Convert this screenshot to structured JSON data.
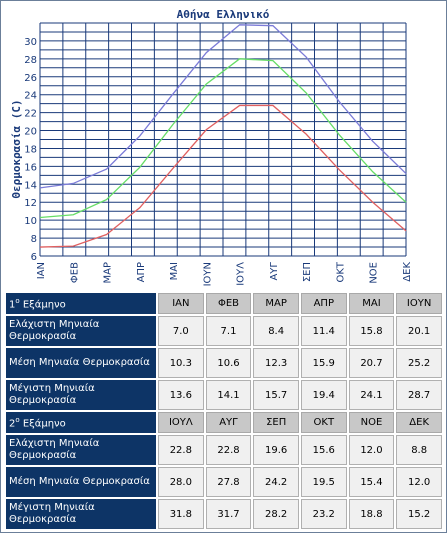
{
  "chart_data": {
    "type": "line",
    "title": "Αθήνα Ελληνικό",
    "ylabel": "Θερμοκρασία (C)",
    "xlabel": "",
    "ylim": [
      6,
      32
    ],
    "yticks": [
      6,
      8,
      10,
      12,
      14,
      16,
      18,
      20,
      22,
      24,
      26,
      28,
      30
    ],
    "categories": [
      "ΙΑΝ",
      "ΦΕΒ",
      "ΜΑΡ",
      "ΑΠΡ",
      "ΜΑΙ",
      "ΙΟΥΝ",
      "ΙΟΥΛ",
      "ΑΥΓ",
      "ΣΕΠ",
      "ΟΚΤ",
      "ΝΟΕ",
      "ΔΕΚ"
    ],
    "grid": true,
    "series": [
      {
        "color": "#e06060",
        "values": [
          7.0,
          7.1,
          8.4,
          11.4,
          15.8,
          20.1,
          22.8,
          22.8,
          19.6,
          15.6,
          12.0,
          8.8
        ]
      },
      {
        "color": "#66dd66",
        "values": [
          10.3,
          10.6,
          12.3,
          15.9,
          20.7,
          25.2,
          28.0,
          27.8,
          24.2,
          19.5,
          15.4,
          12.0
        ]
      },
      {
        "color": "#7b7bd8",
        "values": [
          13.6,
          14.1,
          15.7,
          19.4,
          24.1,
          28.7,
          31.8,
          31.7,
          28.2,
          23.2,
          18.8,
          15.2
        ]
      }
    ],
    "colors": {
      "grid": "#1a3a7a",
      "title": "#1a3a7a"
    }
  },
  "table": {
    "semester1": {
      "label_num": "1",
      "label_sup": "ο",
      "label_text": " Εξάμηνο",
      "months": [
        "ΙΑΝ",
        "ΦΕΒ",
        "ΜΑΡ",
        "ΑΠΡ",
        "ΜΑΙ",
        "ΙΟΥΝ"
      ],
      "rows": [
        {
          "label": "Ελάχιστη Μηνιαία Θερμοκρασία",
          "values": [
            "7.0",
            "7.1",
            "8.4",
            "11.4",
            "15.8",
            "20.1"
          ]
        },
        {
          "label": "Μέση Μηνιαία Θερμοκρασία",
          "values": [
            "10.3",
            "10.6",
            "12.3",
            "15.9",
            "20.7",
            "25.2"
          ]
        },
        {
          "label": "Μέγιστη Μηνιαία Θερμοκρασία",
          "values": [
            "13.6",
            "14.1",
            "15.7",
            "19.4",
            "24.1",
            "28.7"
          ]
        }
      ]
    },
    "semester2": {
      "label_num": "2",
      "label_sup": "ο",
      "label_text": " Εξάμηνο",
      "months": [
        "ΙΟΥΛ",
        "ΑΥΓ",
        "ΣΕΠ",
        "ΟΚΤ",
        "ΝΟΕ",
        "ΔΕΚ"
      ],
      "rows": [
        {
          "label": "Ελάχιστη Μηνιαία Θερμοκρασία",
          "values": [
            "22.8",
            "22.8",
            "19.6",
            "15.6",
            "12.0",
            "8.8"
          ]
        },
        {
          "label": "Μέση Μηνιαία Θερμοκρασία",
          "values": [
            "28.0",
            "27.8",
            "24.2",
            "19.5",
            "15.4",
            "12.0"
          ]
        },
        {
          "label": "Μέγιστη Μηνιαία Θερμοκρασία",
          "values": [
            "31.8",
            "31.7",
            "28.2",
            "23.2",
            "18.8",
            "15.2"
          ]
        }
      ]
    }
  }
}
